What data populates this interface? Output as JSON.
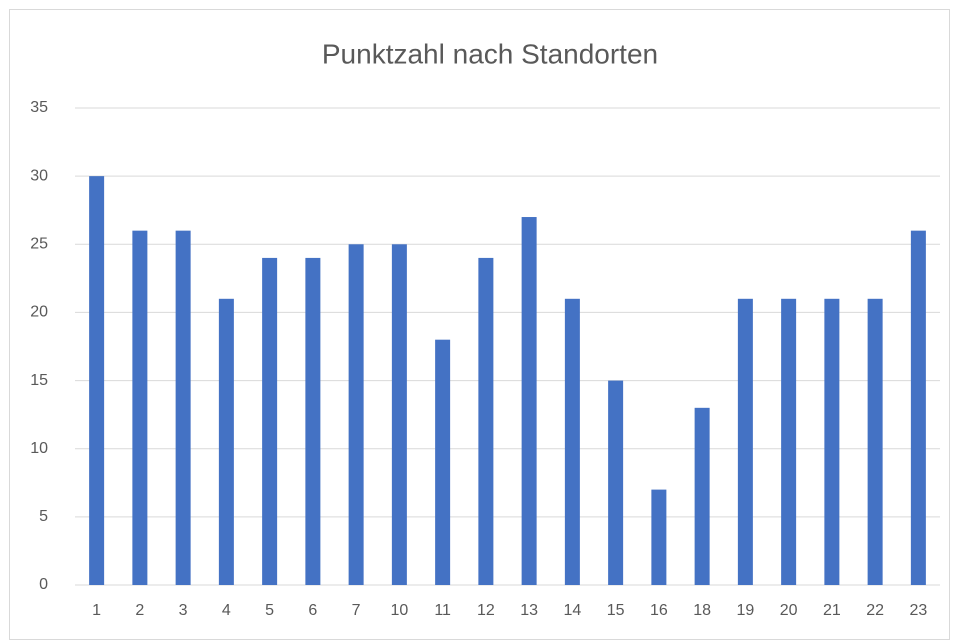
{
  "chart_data": {
    "type": "bar",
    "title": "Punktzahl nach Standorten",
    "categories": [
      "1",
      "2",
      "3",
      "4",
      "5",
      "6",
      "7",
      "10",
      "11",
      "12",
      "13",
      "14",
      "15",
      "16",
      "18",
      "19",
      "20",
      "21",
      "22",
      "23"
    ],
    "values": [
      30,
      26,
      26,
      21,
      24,
      24,
      25,
      25,
      18,
      24,
      27,
      21,
      15,
      7,
      13,
      21,
      21,
      21,
      21,
      26
    ],
    "color": "#4472c4",
    "ylim": [
      0,
      35
    ],
    "yticks": [
      0,
      5,
      10,
      15,
      20,
      25,
      30,
      35
    ],
    "grid": true
  }
}
